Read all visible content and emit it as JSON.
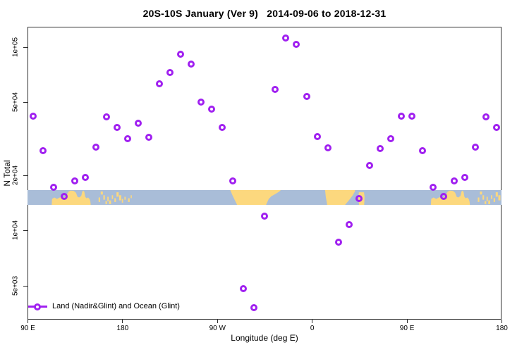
{
  "title": "20S-10S January (Ver 9)   2014-09-06 to 2018-12-31",
  "axes": {
    "x_label": "Longitude (deg E)",
    "y_label": "N Total",
    "y_scale": "log",
    "x_ticks": [
      {
        "label": "90 E",
        "lon": 90
      },
      {
        "label": "180",
        "lon": 180
      },
      {
        "label": "90 W",
        "lon": 270
      },
      {
        "label": "0",
        "lon": 360
      },
      {
        "label": "90 E",
        "lon": 450
      },
      {
        "label": "180",
        "lon": 540
      }
    ],
    "y_ticks": [
      {
        "label": "1e+05",
        "value": 100000
      },
      {
        "label": "5e+04",
        "value": 50000
      },
      {
        "label": "2e+04",
        "value": 20000
      },
      {
        "label": "1e+04",
        "value": 10000
      },
      {
        "label": "5e+03",
        "value": 5000
      }
    ]
  },
  "legend": {
    "label": "Land (Nadir&Glint) and Ocean (Glint)"
  },
  "colors": {
    "point_purple": "#A020F0",
    "ocean_blue": "#A9BDD8",
    "land_yellow": "#FCD87E",
    "axis": "#2e2e2e"
  },
  "chart_data": {
    "type": "scatter",
    "title": "20S-10S January (Ver 9)   2014-09-06 to 2018-12-31",
    "xlabel": "Longitude (deg E)",
    "ylabel": "N Total",
    "y_scale": "log",
    "ylim": [
      3300,
      129000
    ],
    "x_plotted_range_deg_e": [
      90,
      540
    ],
    "grid": false,
    "legend_position": "bottom-left",
    "marker": "open-circle",
    "points": [
      [
        95,
        42000
      ],
      [
        105,
        27200
      ],
      [
        115,
        17200
      ],
      [
        125,
        15400
      ],
      [
        135,
        18600
      ],
      [
        145,
        19400
      ],
      [
        155,
        28400
      ],
      [
        165,
        41600
      ],
      [
        175,
        36400
      ],
      [
        185,
        31600
      ],
      [
        195,
        38400
      ],
      [
        205,
        32300
      ],
      [
        215,
        63000
      ],
      [
        225,
        73000
      ],
      [
        235,
        91500
      ],
      [
        245,
        81000
      ],
      [
        255,
        50000
      ],
      [
        265,
        46000
      ],
      [
        275,
        36400
      ],
      [
        285,
        18700
      ],
      [
        295,
        4800
      ],
      [
        305,
        3800
      ],
      [
        315,
        12000
      ],
      [
        325,
        58800
      ],
      [
        335,
        112000
      ],
      [
        345,
        103500
      ],
      [
        355,
        53800
      ],
      [
        365,
        32500
      ],
      [
        375,
        28200
      ],
      [
        385,
        8600
      ],
      [
        395,
        10800
      ],
      [
        405,
        15000
      ],
      [
        415,
        22600
      ],
      [
        425,
        27900
      ],
      [
        435,
        31600
      ],
      [
        445,
        42000
      ],
      [
        455,
        42000
      ],
      [
        465,
        27300
      ],
      [
        475,
        17200
      ],
      [
        485,
        15400
      ],
      [
        495,
        18700
      ],
      [
        505,
        19400
      ],
      [
        515,
        28400
      ],
      [
        525,
        41600
      ],
      [
        535,
        36400
      ]
    ],
    "map_strip": {
      "description": "land/ocean strip for 20S-10S latitude band vs longitude",
      "land_polygons": [
        {
          "name": "australia",
          "repeat_plus_360": true,
          "points": [
            [
              113,
              1
            ],
            [
              113.3,
              0.6
            ],
            [
              115.5,
              0.5
            ],
            [
              118,
              0.6
            ],
            [
              121,
              0.48
            ],
            [
              124,
              0.55
            ],
            [
              127,
              0.35
            ],
            [
              129,
              0.1
            ],
            [
              131,
              0.04
            ],
            [
              134,
              0.06
            ],
            [
              136,
              0.18
            ],
            [
              137.5,
              0.45
            ],
            [
              139,
              0.5
            ],
            [
              141,
              0.4
            ],
            [
              142,
              0.1
            ],
            [
              143,
              0.04
            ],
            [
              144,
              0.12
            ],
            [
              144.8,
              0.45
            ],
            [
              146,
              0.55
            ],
            [
              147.5,
              0.5
            ],
            [
              149,
              0.62
            ],
            [
              149.7,
              0.8
            ],
            [
              150,
              1
            ]
          ]
        },
        {
          "name": "south-america",
          "repeat_plus_360": false,
          "points": [
            [
              282.5,
              0
            ],
            [
              284.5,
              0.35
            ],
            [
              289,
              1
            ],
            [
              316.5,
              1
            ],
            [
              319,
              0.6
            ],
            [
              321.5,
              0.42
            ],
            [
              325,
              0.28
            ],
            [
              329,
              0.1
            ],
            [
              330.5,
              0
            ]
          ]
        },
        {
          "name": "africa",
          "repeat_plus_360": false,
          "points": [
            [
              372.5,
              0
            ],
            [
              373.2,
              0.45
            ],
            [
              374.5,
              1
            ],
            [
              391.5,
              1
            ],
            [
              395,
              0.7
            ],
            [
              398.5,
              0.38
            ],
            [
              400.8,
              0.1
            ],
            [
              401,
              0
            ]
          ]
        },
        {
          "name": "madagascar",
          "repeat_plus_360": false,
          "points": [
            [
              404.6,
              0.15
            ],
            [
              404.2,
              0.55
            ],
            [
              404.8,
              1
            ],
            [
              409.6,
              1
            ],
            [
              410,
              0.45
            ],
            [
              409.4,
              0.15
            ]
          ]
        }
      ],
      "islands": [
        [
          157.5,
          0.5,
          1.5,
          0.3
        ],
        [
          159.5,
          0.1,
          2,
          0.2
        ],
        [
          162,
          0.35,
          1.5,
          0.3
        ],
        [
          164,
          0.75,
          1.5,
          0.2
        ],
        [
          165.8,
          0.45,
          1.2,
          0.3
        ],
        [
          167.5,
          0.7,
          1.8,
          0.25
        ],
        [
          170,
          0.35,
          1.2,
          0.25
        ],
        [
          172.5,
          0.55,
          1.5,
          0.25
        ],
        [
          174.5,
          0.15,
          2,
          0.3
        ],
        [
          177,
          0.35,
          2,
          0.35
        ],
        [
          179.5,
          0.6,
          1.2,
          0.25
        ],
        [
          182,
          0.45,
          1.2,
          0.2
        ],
        [
          185.5,
          0.55,
          1.5,
          0.25
        ],
        [
          188,
          0.35,
          1,
          0.2
        ]
      ]
    }
  }
}
